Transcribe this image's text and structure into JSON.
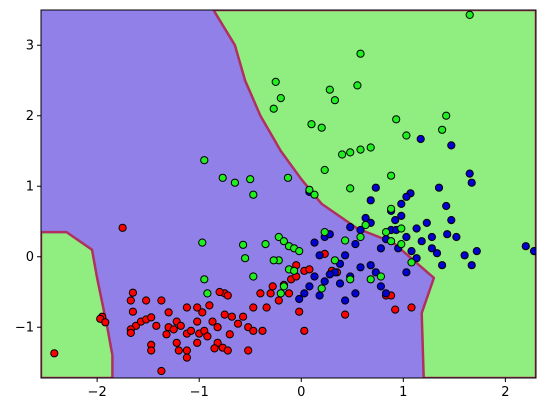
{
  "chart_data": {
    "type": "scatter",
    "title": "",
    "xlabel": "",
    "ylabel": "",
    "xlim": [
      -2.55,
      2.3
    ],
    "ylim": [
      -1.72,
      3.5
    ],
    "grid": false,
    "legend": "none",
    "x_ticks": [
      -2,
      -1,
      0,
      1,
      2
    ],
    "y_ticks": [
      -1,
      0,
      1,
      2,
      3
    ],
    "x_tick_labels": [
      "−2",
      "−1",
      "0",
      "1",
      "2"
    ],
    "y_tick_labels": [
      "−1",
      "0",
      "1",
      "2",
      "3"
    ],
    "regions": [
      {
        "color": "#90ee80",
        "description": "green decision region (upper right)",
        "polygon": [
          [
            -0.86,
            3.5
          ],
          [
            2.3,
            3.5
          ],
          [
            2.3,
            -1.72
          ],
          [
            1.2,
            -1.72
          ],
          [
            1.18,
            -0.8
          ],
          [
            1.3,
            -0.3
          ],
          [
            0.9,
            0.2
          ],
          [
            0.55,
            0.4
          ],
          [
            0.2,
            0.75
          ],
          [
            0.0,
            1.1
          ],
          [
            -0.2,
            1.5
          ],
          [
            -0.4,
            2.0
          ],
          [
            -0.55,
            2.5
          ],
          [
            -0.65,
            3.0
          ],
          [
            -0.86,
            3.5
          ]
        ]
      },
      {
        "color": "#90ee80",
        "description": "green decision region (lower left)",
        "polygon": [
          [
            -2.55,
            0.35
          ],
          [
            -2.3,
            0.35
          ],
          [
            -2.05,
            0.1
          ],
          [
            -2.0,
            -0.3
          ],
          [
            -1.95,
            -0.65
          ],
          [
            -1.9,
            -1.0
          ],
          [
            -1.85,
            -1.4
          ],
          [
            -1.85,
            -1.72
          ],
          [
            -2.55,
            -1.72
          ]
        ]
      }
    ],
    "background_region_color": "#9080e8",
    "boundary_color": "#b03060",
    "series": [
      {
        "color": "#ff0000",
        "points": [
          [
            -2.42,
            -1.37
          ],
          [
            -1.75,
            0.41
          ],
          [
            -1.95,
            -0.85
          ],
          [
            -1.97,
            -0.88
          ],
          [
            -1.92,
            -0.93
          ],
          [
            -1.65,
            -0.51
          ],
          [
            -1.67,
            -0.62
          ],
          [
            -1.65,
            -0.78
          ],
          [
            -1.52,
            -0.62
          ],
          [
            -1.62,
            -0.98
          ],
          [
            -1.67,
            -1.03
          ],
          [
            -1.67,
            -1.08
          ],
          [
            -1.57,
            -0.92
          ],
          [
            -1.52,
            -0.89
          ],
          [
            -1.47,
            -0.86
          ],
          [
            -1.42,
            -0.98
          ],
          [
            -1.47,
            -1.25
          ],
          [
            -1.47,
            -1.33
          ],
          [
            -1.37,
            -0.62
          ],
          [
            -1.3,
            -0.79
          ],
          [
            -1.3,
            -1.0
          ],
          [
            -1.32,
            -1.1
          ],
          [
            -1.25,
            -1.03
          ],
          [
            -1.22,
            -0.92
          ],
          [
            -1.22,
            -1.22
          ],
          [
            -1.2,
            -1.33
          ],
          [
            -1.12,
            -0.72
          ],
          [
            -1.12,
            -1.09
          ],
          [
            -1.12,
            -1.43
          ],
          [
            -1.02,
            -0.72
          ],
          [
            -1.02,
            -0.92
          ],
          [
            -1.0,
            -1.09
          ],
          [
            -1.02,
            -1.22
          ],
          [
            -0.97,
            -0.79
          ],
          [
            -0.95,
            -1.05
          ],
          [
            -0.9,
            -0.69
          ],
          [
            -0.87,
            -0.92
          ],
          [
            -0.82,
            -1.0
          ],
          [
            -0.82,
            -1.22
          ],
          [
            -0.77,
            -1.29
          ],
          [
            -0.75,
            -0.52
          ],
          [
            -0.72,
            -0.55
          ],
          [
            -0.7,
            -1.1
          ],
          [
            -0.68,
            -0.85
          ],
          [
            -0.62,
            -0.95
          ],
          [
            -0.57,
            -0.85
          ],
          [
            -0.52,
            -1.0
          ],
          [
            -0.47,
            -0.72
          ],
          [
            -0.47,
            -1.05
          ],
          [
            -0.4,
            -0.52
          ],
          [
            -0.38,
            -1.05
          ],
          [
            -0.34,
            -0.72
          ],
          [
            -0.3,
            -0.52
          ],
          [
            -0.28,
            -0.42
          ],
          [
            -0.22,
            -0.62
          ],
          [
            -0.17,
            -0.4
          ],
          [
            -0.12,
            -0.52
          ],
          [
            -0.1,
            -0.32
          ],
          [
            -0.05,
            -0.28
          ],
          [
            0.03,
            -0.2
          ],
          [
            0.08,
            -0.18
          ],
          [
            -0.02,
            -0.78
          ],
          [
            0.03,
            -1.05
          ],
          [
            0.3,
            -0.2
          ],
          [
            0.35,
            -0.22
          ],
          [
            0.43,
            -0.82
          ],
          [
            0.83,
            -0.55
          ],
          [
            0.88,
            -0.55
          ],
          [
            0.92,
            -0.75
          ],
          [
            1.08,
            -0.72
          ],
          [
            -0.05,
            -0.12
          ],
          [
            0.23,
            0.04
          ],
          [
            -0.75,
            -0.82
          ],
          [
            -0.92,
            -1.13
          ],
          [
            -1.08,
            -1.05
          ],
          [
            -1.18,
            -0.98
          ],
          [
            -0.8,
            -0.5
          ],
          [
            -1.37,
            -1.62
          ],
          [
            -0.52,
            -1.33
          ],
          [
            -0.72,
            -1.33
          ],
          [
            -0.85,
            -1.3
          ],
          [
            -1.12,
            -1.33
          ]
        ]
      },
      {
        "color": "#0000d0",
        "points": [
          [
            1.65,
            1.18
          ],
          [
            1.67,
            1.05
          ],
          [
            1.47,
            1.58
          ],
          [
            1.17,
            1.67
          ],
          [
            1.35,
            0.98
          ],
          [
            1.42,
            0.72
          ],
          [
            1.47,
            0.52
          ],
          [
            1.52,
            0.28
          ],
          [
            1.6,
            0.02
          ],
          [
            1.67,
            -0.12
          ],
          [
            1.72,
            0.08
          ],
          [
            2.2,
            0.15
          ],
          [
            2.28,
            0.08
          ],
          [
            1.07,
            0.9
          ],
          [
            1.03,
            0.85
          ],
          [
            0.98,
            0.75
          ],
          [
            0.92,
            0.52
          ],
          [
            0.88,
            0.38
          ],
          [
            0.83,
            0.25
          ],
          [
            0.78,
            0.12
          ],
          [
            0.73,
            0.98
          ],
          [
            0.68,
            0.8
          ],
          [
            0.63,
            0.55
          ],
          [
            0.58,
            0.38
          ],
          [
            0.53,
            0.18
          ],
          [
            0.43,
            0.02
          ],
          [
            0.38,
            -0.1
          ],
          [
            0.33,
            -0.22
          ],
          [
            0.23,
            -0.35
          ],
          [
            0.13,
            -0.28
          ],
          [
            0.08,
            -0.42
          ],
          [
            0.03,
            -0.52
          ],
          [
            -0.02,
            -0.6
          ],
          [
            0.08,
            0.92
          ],
          [
            0.23,
            0.28
          ],
          [
            0.28,
            0.32
          ],
          [
            0.13,
            0.2
          ],
          [
            0.18,
            0.02
          ],
          [
            0.28,
            -0.25
          ],
          [
            0.38,
            -0.38
          ],
          [
            0.48,
            -0.28
          ],
          [
            0.58,
            -0.15
          ],
          [
            0.68,
            -0.12
          ],
          [
            0.73,
            -0.22
          ],
          [
            0.93,
            0.38
          ],
          [
            1.03,
            0.28
          ],
          [
            1.08,
            0.08
          ],
          [
            1.13,
            -0.02
          ],
          [
            1.18,
            0.22
          ],
          [
            1.28,
            0.28
          ],
          [
            1.33,
            0.05
          ],
          [
            1.38,
            -0.12
          ],
          [
            1.03,
            -0.22
          ],
          [
            0.83,
            -0.52
          ],
          [
            0.78,
            -0.42
          ],
          [
            0.53,
            -0.52
          ],
          [
            0.43,
            -0.62
          ],
          [
            0.48,
            0.42
          ],
          [
            1.28,
            0.12
          ],
          [
            1.23,
            0.48
          ],
          [
            1.13,
            0.4
          ],
          [
            1.43,
            0.32
          ],
          [
            0.68,
            0.48
          ],
          [
            0.98,
            0.58
          ],
          [
            0.88,
            0.65
          ],
          [
            0.95,
            0.12
          ],
          [
            0.18,
            -0.55
          ]
        ]
      },
      {
        "color": "#20ee20",
        "points": [
          [
            1.65,
            3.43
          ],
          [
            0.58,
            2.88
          ],
          [
            -0.25,
            2.48
          ],
          [
            0.28,
            2.37
          ],
          [
            0.33,
            2.22
          ],
          [
            0.55,
            2.43
          ],
          [
            -0.2,
            2.25
          ],
          [
            -0.27,
            2.1
          ],
          [
            0.93,
            1.95
          ],
          [
            1.42,
            2.0
          ],
          [
            1.38,
            1.8
          ],
          [
            1.03,
            1.72
          ],
          [
            0.1,
            1.88
          ],
          [
            0.2,
            1.83
          ],
          [
            0.4,
            1.45
          ],
          [
            0.48,
            1.48
          ],
          [
            0.58,
            1.52
          ],
          [
            0.68,
            1.55
          ],
          [
            0.88,
            1.15
          ],
          [
            -0.95,
            1.37
          ],
          [
            -0.77,
            1.12
          ],
          [
            -0.65,
            1.05
          ],
          [
            -0.5,
            1.1
          ],
          [
            -0.47,
            0.88
          ],
          [
            -0.13,
            1.12
          ],
          [
            0.08,
            0.95
          ],
          [
            0.13,
            0.88
          ],
          [
            0.23,
            1.23
          ],
          [
            0.48,
            0.97
          ],
          [
            -0.97,
            0.2
          ],
          [
            -0.57,
            0.17
          ],
          [
            -0.55,
            -0.02
          ],
          [
            -0.35,
            0.18
          ],
          [
            -0.22,
            0.28
          ],
          [
            -0.17,
            0.22
          ],
          [
            -0.12,
            0.15
          ],
          [
            -0.07,
            0.12
          ],
          [
            -0.02,
            0.08
          ],
          [
            -0.22,
            -0.05
          ],
          [
            -0.12,
            -0.18
          ],
          [
            -0.07,
            -0.2
          ],
          [
            -0.17,
            -0.42
          ],
          [
            -0.2,
            -0.52
          ],
          [
            -0.27,
            -0.05
          ],
          [
            -0.47,
            -0.28
          ],
          [
            -0.92,
            -0.52
          ],
          [
            0.2,
            -0.45
          ],
          [
            0.43,
            0.23
          ],
          [
            0.58,
            0.28
          ],
          [
            0.68,
            -0.32
          ],
          [
            0.78,
            -0.28
          ],
          [
            0.83,
            0.35
          ],
          [
            0.88,
            0.22
          ],
          [
            0.98,
            0.18
          ],
          [
            1.08,
            -0.08
          ],
          [
            0.48,
            -0.32
          ],
          [
            0.33,
            -0.05
          ],
          [
            0.23,
            0.35
          ],
          [
            0.88,
            0.68
          ],
          [
            0.98,
            0.4
          ],
          [
            0.63,
            0.45
          ],
          [
            -0.95,
            -0.32
          ]
        ]
      }
    ]
  }
}
